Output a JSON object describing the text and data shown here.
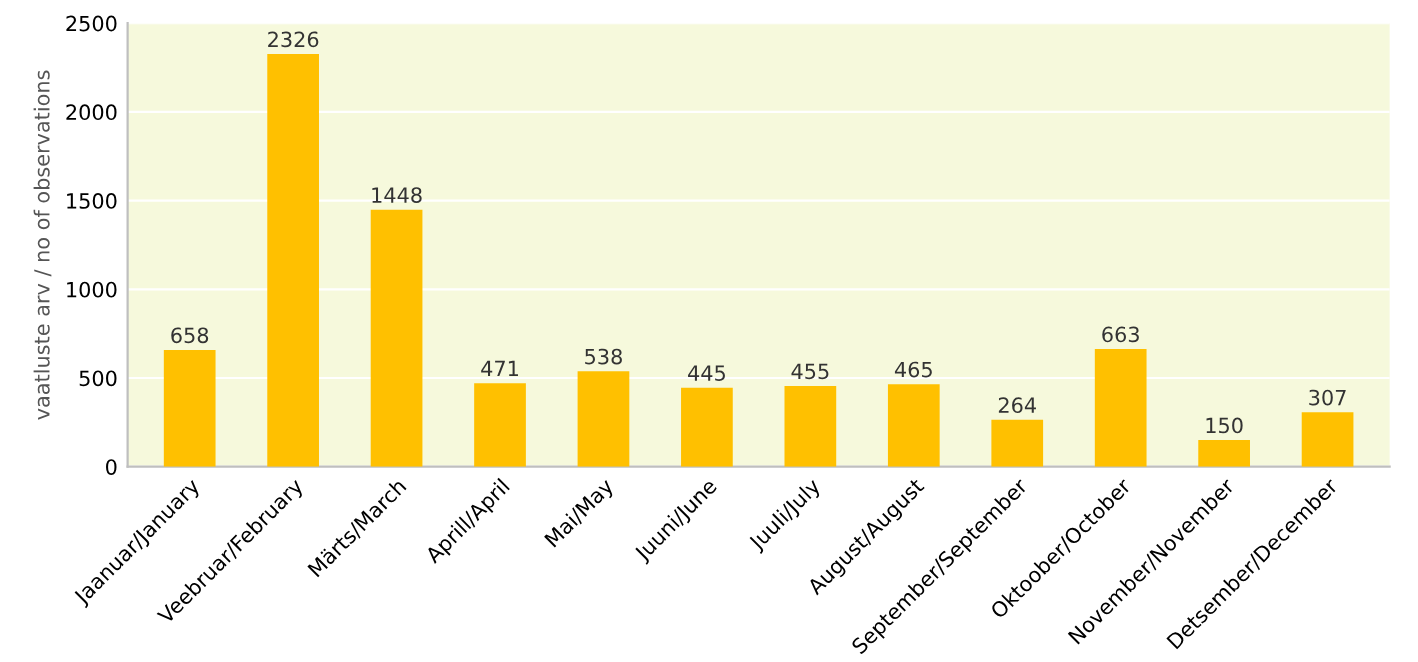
{
  "chart_data": {
    "type": "bar",
    "categories": [
      "Jaanuar/January",
      "Veebruar/February",
      "Märts/March",
      "Aprill/April",
      "Mai/May",
      "Juuni/June",
      "Juuli/July",
      "August/August",
      "September/September",
      "Oktoober/October",
      "November/November",
      "Detsember/December"
    ],
    "values": [
      658,
      2326,
      1448,
      471,
      538,
      445,
      455,
      465,
      264,
      663,
      150,
      307
    ],
    "color": "#ffc000",
    "ylabel": "vaatluste arv / no of observations",
    "ylim": [
      0,
      2500
    ],
    "yticks": [
      0,
      500,
      1000,
      1500,
      2000,
      2500
    ],
    "grid": "y",
    "data_labels": true
  }
}
